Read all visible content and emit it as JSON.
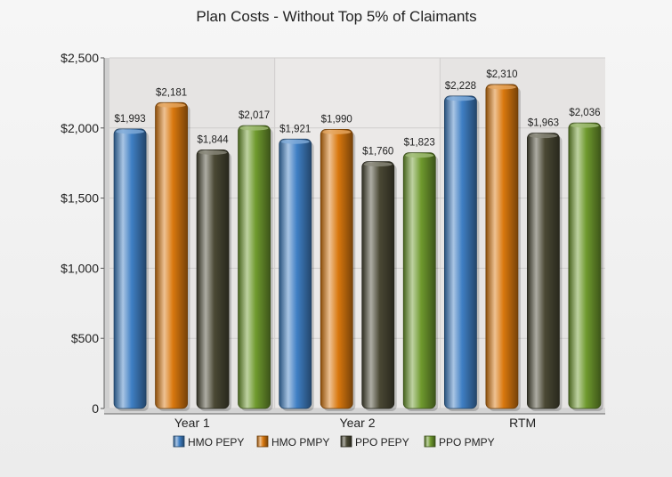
{
  "chart_data": {
    "type": "bar",
    "title": "Plan Costs - Without Top 5% of Claimants",
    "categories": [
      "Year 1",
      "Year 2",
      "RTM"
    ],
    "series": [
      {
        "name": "HMO PEPY",
        "values": [
          1993,
          1921,
          2228
        ],
        "labels": [
          "$1,993",
          "$1,921",
          "$2,228"
        ],
        "color": "#3f7fc4"
      },
      {
        "name": "HMO PMPY",
        "values": [
          2181,
          1990,
          2310
        ],
        "labels": [
          "$2,181",
          "$1,990",
          "$2,310"
        ],
        "color": "#d9780e"
      },
      {
        "name": "PPO PEPY",
        "values": [
          1844,
          1760,
          1963
        ],
        "labels": [
          "$1,844",
          "$1,760",
          "$1,963"
        ],
        "color": "#4a4834"
      },
      {
        "name": "PPO PMPY",
        "values": [
          2017,
          1823,
          2036
        ],
        "labels": [
          "$2,017",
          "$1,823",
          "$2,036"
        ],
        "color": "#6f9a2e"
      }
    ],
    "ylim": [
      0,
      2500
    ],
    "yticks": [
      0,
      500,
      1000,
      1500,
      2000,
      2500
    ],
    "ytick_labels": [
      "0",
      "$500",
      "$1,000",
      "$1,500",
      "$2,000",
      "$2,500"
    ],
    "grid": true,
    "legend_position": "bottom"
  }
}
